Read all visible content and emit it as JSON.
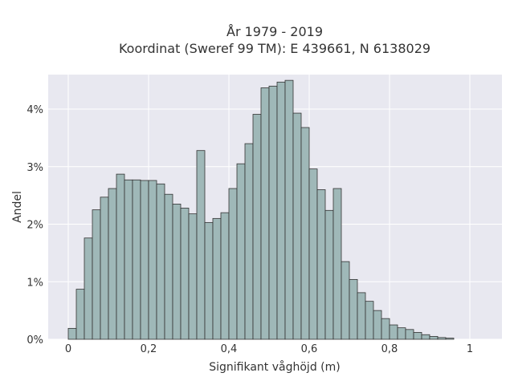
{
  "chart_data": {
    "type": "bar",
    "title_line1": "År 1979 - 2019",
    "title_line2": "Koordinat (Sweref 99 TM): E 439661, N 6138029",
    "xlabel": "Signifikant våghöjd (m)",
    "ylabel": "Andel",
    "x_ticks": [
      "0",
      "0,2",
      "0,4",
      "0,6",
      "0,8",
      "1"
    ],
    "y_ticks": [
      "0%",
      "1%",
      "2%",
      "3%",
      "4%"
    ],
    "bin_width": 0.02,
    "bin_start": 0.0,
    "values": [
      0.19,
      0.87,
      1.76,
      2.25,
      2.47,
      2.62,
      2.87,
      2.77,
      2.77,
      2.76,
      2.76,
      2.7,
      2.52,
      2.35,
      2.28,
      2.18,
      3.28,
      2.03,
      2.1,
      2.2,
      2.62,
      3.05,
      3.4,
      3.91,
      4.37,
      4.4,
      4.47,
      4.5,
      3.93,
      3.68,
      2.96,
      2.6,
      2.24,
      2.62,
      1.35,
      1.04,
      0.81,
      0.66,
      0.5,
      0.36,
      0.25,
      0.2,
      0.17,
      0.12,
      0.08,
      0.05,
      0.03,
      0.02
    ],
    "ylim": [
      0,
      4.6
    ],
    "xlim": [
      -0.05,
      1.08
    ],
    "grid": true,
    "colors": {
      "plot_background": "#e8e8f0",
      "bar_fill": "#9fb8b8",
      "bar_stroke": "#333333",
      "grid": "#ffffff"
    }
  }
}
